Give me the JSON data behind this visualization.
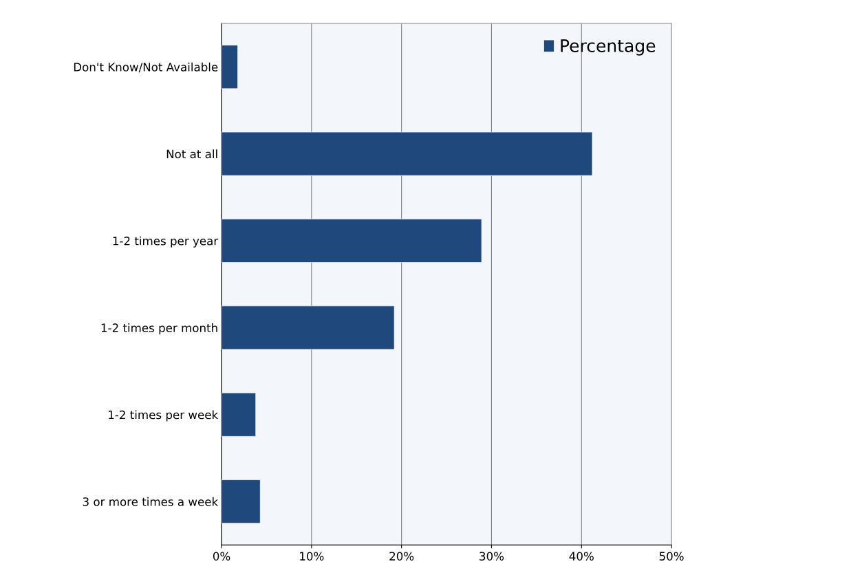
{
  "chart_data": {
    "type": "bar",
    "orientation": "horizontal",
    "categories": [
      "Don't Know/Not Available",
      "Not at all",
      "1-2 times per year",
      "1-2 times per month",
      "1-2 times per week",
      "3 or more times a week"
    ],
    "series": [
      {
        "name": "Percentage",
        "color": "#1f497d",
        "values": [
          1.8,
          41.2,
          28.9,
          19.2,
          3.8,
          4.3
        ]
      }
    ],
    "xlim": [
      0,
      50
    ],
    "xticks": [
      {
        "value": 0,
        "label": "0%"
      },
      {
        "value": 10,
        "label": "10%"
      },
      {
        "value": 20,
        "label": "20%"
      },
      {
        "value": 30,
        "label": "30%"
      },
      {
        "value": 40,
        "label": "40%"
      },
      {
        "value": 50,
        "label": "50%"
      }
    ],
    "grid": "x",
    "legend": "top right"
  }
}
